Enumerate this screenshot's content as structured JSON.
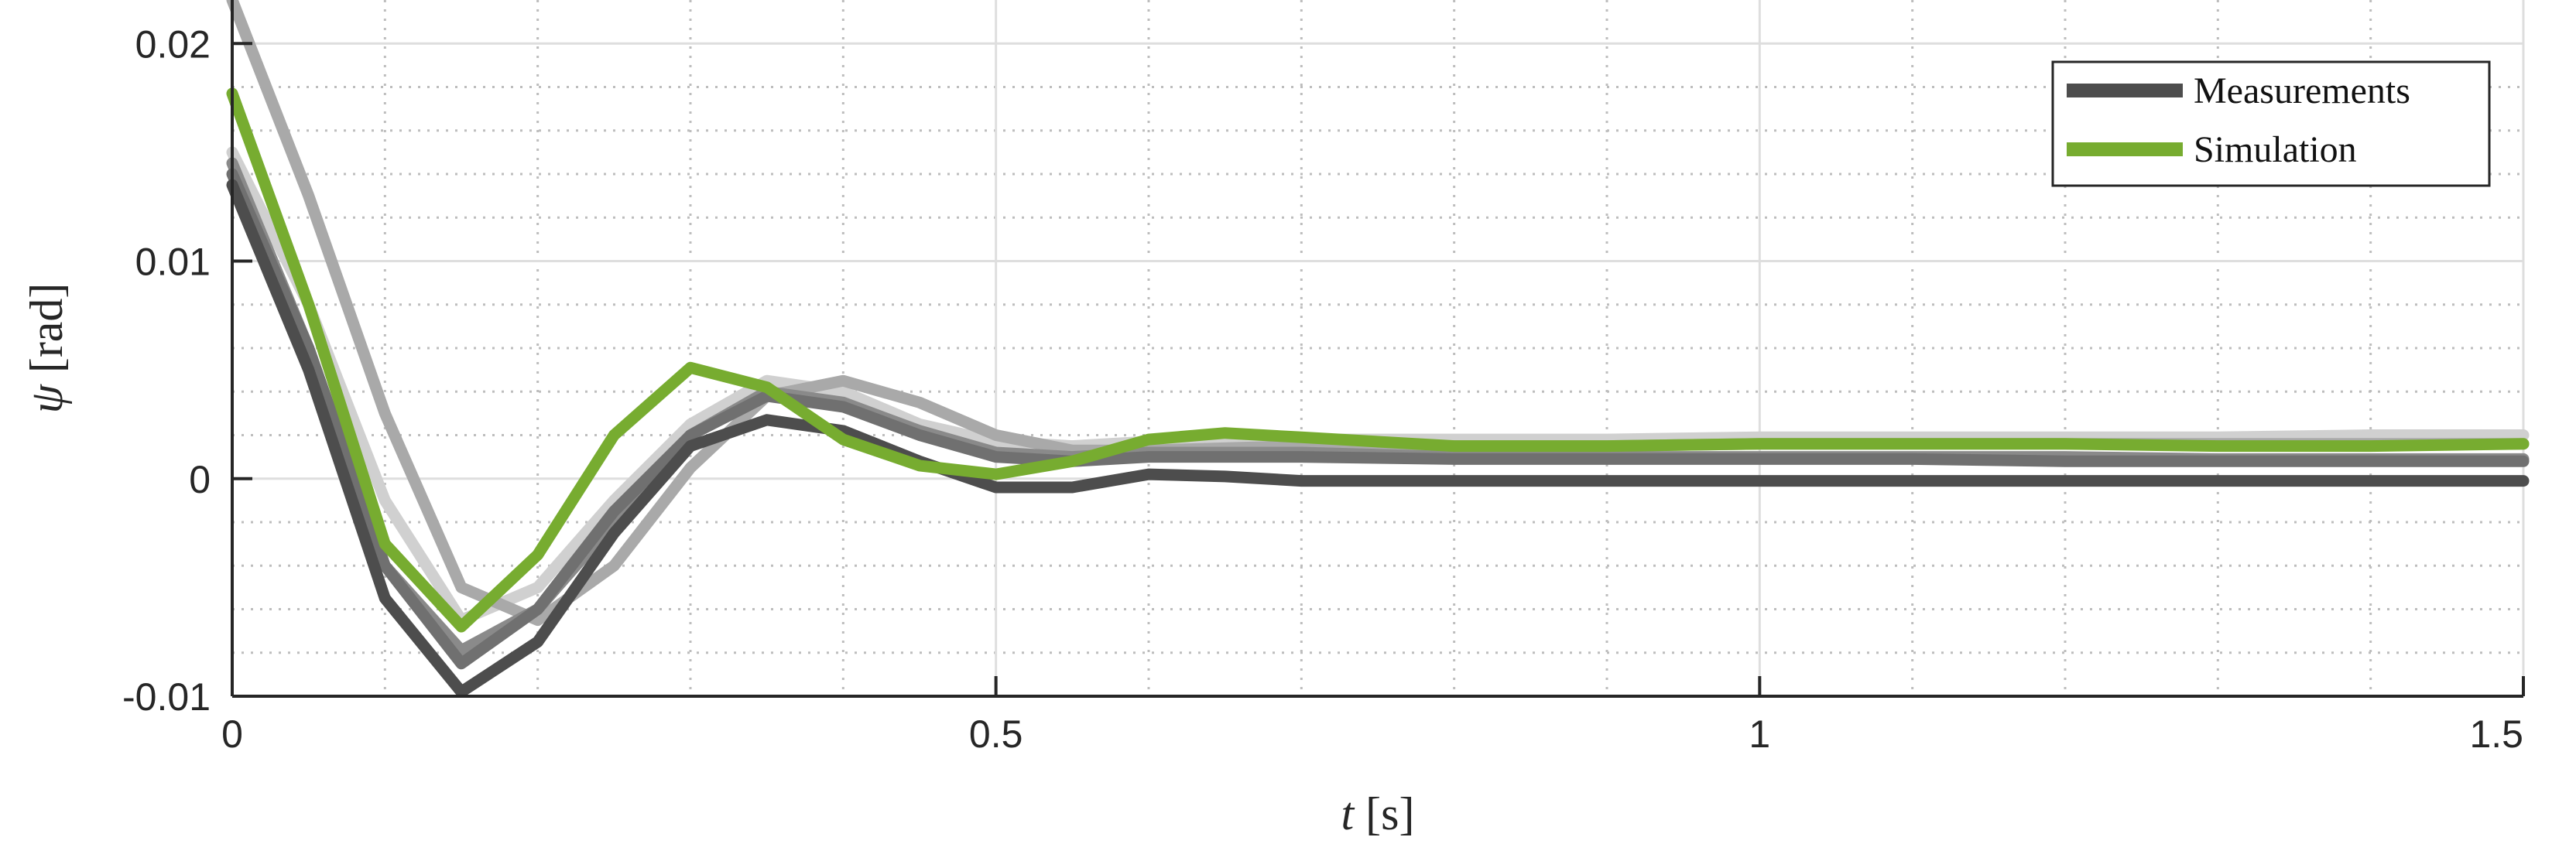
{
  "chart_data": {
    "type": "line",
    "xlabel_symbol": "t",
    "xlabel_unit": " [s]",
    "ylabel_symbol": "ψ",
    "ylabel_unit": " [rad]",
    "xlim": [
      0,
      1.5
    ],
    "ylim": [
      -0.01,
      0.022
    ],
    "x_ticks": [
      0,
      0.5,
      1,
      1.5
    ],
    "x_tick_labels": [
      "0",
      "0.5",
      "1",
      "1.5"
    ],
    "y_ticks": [
      -0.01,
      0,
      0.01,
      0.02
    ],
    "y_tick_labels": [
      "-0.01",
      "0",
      "0.01",
      "0.02"
    ],
    "grid": true,
    "minor_grid": true,
    "legend_position": "top-right",
    "legend": [
      {
        "label": "Measurements",
        "color": "#4d4d4d"
      },
      {
        "label": "Simulation",
        "color": "#77ac30"
      }
    ],
    "series": [
      {
        "color": "#d0d0d0",
        "x": [
          0,
          0.05,
          0.1,
          0.15,
          0.2,
          0.25,
          0.3,
          0.35,
          0.4,
          0.45,
          0.5,
          0.55,
          0.6,
          0.7,
          0.8,
          0.9,
          1.0,
          1.1,
          1.2,
          1.3,
          1.4,
          1.5
        ],
        "y": [
          0.015,
          0.008,
          -0.001,
          -0.0065,
          -0.005,
          -0.001,
          0.0025,
          0.0045,
          0.004,
          0.0025,
          0.0017,
          0.0015,
          0.0017,
          0.0018,
          0.0018,
          0.0018,
          0.0019,
          0.0019,
          0.0019,
          0.0019,
          0.002,
          0.002
        ]
      },
      {
        "color": "#a9a9a9",
        "x": [
          0,
          0.05,
          0.1,
          0.15,
          0.2,
          0.25,
          0.3,
          0.35,
          0.4,
          0.45,
          0.5,
          0.55,
          0.6,
          0.7,
          0.8,
          0.9,
          1.0,
          1.1,
          1.2,
          1.3,
          1.4,
          1.5
        ],
        "y": [
          0.022,
          0.013,
          0.003,
          -0.005,
          -0.0065,
          -0.004,
          0.0005,
          0.0038,
          0.0045,
          0.0035,
          0.002,
          0.0013,
          0.0013,
          0.0015,
          0.0015,
          0.0015,
          0.0016,
          0.0016,
          0.0016,
          0.0016,
          0.0016,
          0.0016
        ]
      },
      {
        "color": "#8a8a8a",
        "x": [
          0,
          0.05,
          0.1,
          0.15,
          0.2,
          0.25,
          0.3,
          0.35,
          0.4,
          0.45,
          0.5,
          0.55,
          0.6,
          0.7,
          0.8,
          0.9,
          1.0,
          1.1,
          1.2,
          1.3,
          1.4,
          1.5
        ],
        "y": [
          0.0145,
          0.006,
          -0.004,
          -0.0079,
          -0.006,
          -0.002,
          0.002,
          0.004,
          0.0035,
          0.0022,
          0.0012,
          0.001,
          0.0012,
          0.0012,
          0.001,
          0.001,
          0.001,
          0.001,
          0.001,
          0.0009,
          0.0009,
          0.0009
        ]
      },
      {
        "color": "#707070",
        "x": [
          0,
          0.05,
          0.1,
          0.15,
          0.2,
          0.25,
          0.3,
          0.35,
          0.4,
          0.45,
          0.5,
          0.55,
          0.6,
          0.7,
          0.8,
          0.9,
          1.0,
          1.1,
          1.2,
          1.3,
          1.4,
          1.5
        ],
        "y": [
          0.014,
          0.006,
          -0.004,
          -0.0085,
          -0.006,
          -0.0015,
          0.002,
          0.0038,
          0.0033,
          0.002,
          0.001,
          0.0008,
          0.001,
          0.001,
          0.0009,
          0.0009,
          0.0009,
          0.0009,
          0.0008,
          0.0008,
          0.0008,
          0.0008
        ]
      },
      {
        "color": "#4d4d4d",
        "x": [
          0,
          0.05,
          0.1,
          0.15,
          0.2,
          0.25,
          0.3,
          0.35,
          0.4,
          0.45,
          0.5,
          0.55,
          0.6,
          0.65,
          0.7,
          0.8,
          0.9,
          1.0,
          1.1,
          1.2,
          1.3,
          1.4,
          1.5
        ],
        "y": [
          0.0135,
          0.005,
          -0.0055,
          -0.0098,
          -0.0075,
          -0.0025,
          0.0015,
          0.0027,
          0.0022,
          0.0008,
          -0.0004,
          -0.0004,
          0.0002,
          0.0001,
          -0.0001,
          -0.0001,
          -0.0001,
          -0.0001,
          -0.0001,
          -0.0001,
          -0.0001,
          -0.0001,
          -0.0001
        ]
      },
      {
        "color": "#77ac30",
        "x": [
          0,
          0.05,
          0.1,
          0.15,
          0.2,
          0.25,
          0.3,
          0.35,
          0.4,
          0.45,
          0.5,
          0.55,
          0.6,
          0.65,
          0.7,
          0.8,
          0.9,
          1.0,
          1.1,
          1.2,
          1.3,
          1.4,
          1.5
        ],
        "y": [
          0.0177,
          0.008,
          -0.003,
          -0.0068,
          -0.0035,
          0.002,
          0.0051,
          0.0042,
          0.0018,
          0.0006,
          0.0002,
          0.0008,
          0.0018,
          0.0021,
          0.0019,
          0.0015,
          0.0015,
          0.0016,
          0.0016,
          0.0016,
          0.0015,
          0.0015,
          0.0016
        ]
      }
    ]
  }
}
